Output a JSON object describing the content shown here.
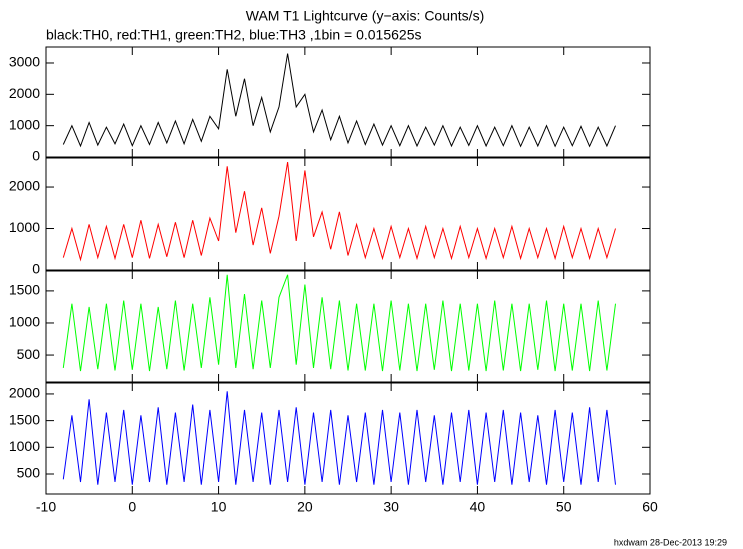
{
  "title": "WAM T1 Lightcurve (y−axis: Counts/s)",
  "subtitle": "black:TH0, red:TH1, green:TH2, blue:TH3 ,1bin = 0.015625s",
  "footer": "hxdwam 28-Dec-2013 19:29",
  "chart_data": [
    {
      "type": "line",
      "color": "#000000",
      "xlim": [
        -10,
        60
      ],
      "ylim": [
        0,
        3510
      ],
      "yticks": [
        0,
        1000,
        2000,
        3000
      ],
      "x": [
        -8,
        -7,
        -6,
        -5,
        -4,
        -3,
        -2,
        -1,
        0,
        1,
        2,
        3,
        4,
        5,
        6,
        7,
        8,
        9,
        10,
        11,
        12,
        13,
        14,
        15,
        16,
        17,
        18,
        19,
        20,
        21,
        22,
        23,
        24,
        25,
        26,
        27,
        28,
        29,
        30,
        31,
        32,
        33,
        34,
        35,
        36,
        37,
        38,
        39,
        40,
        41,
        42,
        43,
        44,
        45,
        46,
        47,
        48,
        49,
        50,
        51,
        52,
        53,
        54,
        55,
        56
      ],
      "values": [
        400,
        1000,
        350,
        1100,
        380,
        950,
        420,
        1050,
        360,
        1000,
        400,
        1100,
        450,
        1150,
        420,
        1200,
        500,
        1300,
        900,
        2800,
        1300,
        2500,
        1000,
        1900,
        800,
        1600,
        3300,
        1600,
        2000,
        800,
        1500,
        550,
        1300,
        450,
        1150,
        400,
        1050,
        380,
        1000,
        360,
        1000,
        350,
        950,
        380,
        1000,
        350,
        950,
        370,
        1000,
        350,
        950,
        360,
        1000,
        340,
        950,
        350,
        1000,
        340,
        950,
        360,
        980,
        340,
        950,
        350,
        1000
      ]
    },
    {
      "type": "line",
      "color": "#ff0000",
      "xlim": [
        -10,
        60
      ],
      "ylim": [
        0,
        2700
      ],
      "yticks": [
        0,
        1000,
        2000
      ],
      "x": [
        -8,
        -7,
        -6,
        -5,
        -4,
        -3,
        -2,
        -1,
        0,
        1,
        2,
        3,
        4,
        5,
        6,
        7,
        8,
        9,
        10,
        11,
        12,
        13,
        14,
        15,
        16,
        17,
        18,
        19,
        20,
        21,
        22,
        23,
        24,
        25,
        26,
        27,
        28,
        29,
        30,
        31,
        32,
        33,
        34,
        35,
        36,
        37,
        38,
        39,
        40,
        41,
        42,
        43,
        44,
        45,
        46,
        47,
        48,
        49,
        50,
        51,
        52,
        53,
        54,
        55,
        56
      ],
      "values": [
        300,
        1000,
        250,
        1100,
        300,
        1050,
        280,
        1100,
        300,
        1200,
        280,
        1100,
        320,
        1150,
        300,
        1200,
        350,
        1250,
        700,
        2500,
        900,
        1900,
        600,
        1500,
        400,
        1300,
        2600,
        700,
        2400,
        800,
        1400,
        500,
        1400,
        350,
        1100,
        300,
        1000,
        280,
        1050,
        300,
        1000,
        280,
        1050,
        300,
        1000,
        280,
        1050,
        300,
        1000,
        280,
        1000,
        300,
        1050,
        280,
        1000,
        300,
        1000,
        280,
        1050,
        300,
        1000,
        280,
        1000,
        300,
        1000
      ]
    },
    {
      "type": "line",
      "color": "#00ff00",
      "xlim": [
        -10,
        60
      ],
      "ylim": [
        80,
        1810
      ],
      "yticks": [
        500,
        1000,
        1500
      ],
      "x": [
        -8,
        -7,
        -6,
        -5,
        -4,
        -3,
        -2,
        -1,
        0,
        1,
        2,
        3,
        4,
        5,
        6,
        7,
        8,
        9,
        10,
        11,
        12,
        13,
        14,
        15,
        16,
        17,
        18,
        19,
        20,
        21,
        22,
        23,
        24,
        25,
        26,
        27,
        28,
        29,
        30,
        31,
        32,
        33,
        34,
        35,
        36,
        37,
        38,
        39,
        40,
        41,
        42,
        43,
        44,
        45,
        46,
        47,
        48,
        49,
        50,
        51,
        52,
        53,
        54,
        55,
        56
      ],
      "values": [
        300,
        1300,
        250,
        1250,
        280,
        1300,
        260,
        1350,
        270,
        1300,
        250,
        1250,
        280,
        1350,
        260,
        1300,
        300,
        1400,
        350,
        1750,
        300,
        1450,
        280,
        1350,
        300,
        1400,
        1750,
        350,
        1600,
        300,
        1400,
        280,
        1350,
        260,
        1300,
        260,
        1300,
        250,
        1350,
        260,
        1300,
        250,
        1300,
        270,
        1350,
        250,
        1300,
        260,
        1300,
        250,
        1350,
        260,
        1300,
        250,
        1300,
        270,
        1350,
        250,
        1300,
        260,
        1300,
        250,
        1350,
        260,
        1300
      ]
    },
    {
      "type": "line",
      "color": "#0000ff",
      "xlim": [
        -10,
        60
      ],
      "ylim": [
        125,
        2205
      ],
      "yticks": [
        500,
        1000,
        1500,
        2000
      ],
      "xticks": [
        -10,
        0,
        10,
        20,
        30,
        40,
        50,
        60
      ],
      "x": [
        -8,
        -7,
        -6,
        -5,
        -4,
        -3,
        -2,
        -1,
        0,
        1,
        2,
        3,
        4,
        5,
        6,
        7,
        8,
        9,
        10,
        11,
        12,
        13,
        14,
        15,
        16,
        17,
        18,
        19,
        20,
        21,
        22,
        23,
        24,
        25,
        26,
        27,
        28,
        29,
        30,
        31,
        32,
        33,
        34,
        35,
        36,
        37,
        38,
        39,
        40,
        41,
        42,
        43,
        44,
        45,
        46,
        47,
        48,
        49,
        50,
        51,
        52,
        53,
        54,
        55,
        56
      ],
      "values": [
        400,
        1600,
        350,
        1900,
        300,
        1650,
        350,
        1700,
        300,
        1600,
        350,
        1750,
        300,
        1650,
        350,
        1800,
        300,
        1700,
        350,
        2050,
        300,
        1700,
        350,
        1650,
        300,
        1700,
        350,
        1750,
        300,
        1650,
        350,
        1700,
        300,
        1600,
        350,
        1650,
        300,
        1700,
        350,
        1650,
        300,
        1700,
        350,
        1600,
        300,
        1650,
        350,
        1700,
        300,
        1650,
        350,
        1700,
        300,
        1650,
        350,
        1600,
        300,
        1700,
        350,
        1650,
        300,
        1750,
        350,
        1700,
        300
      ]
    }
  ]
}
